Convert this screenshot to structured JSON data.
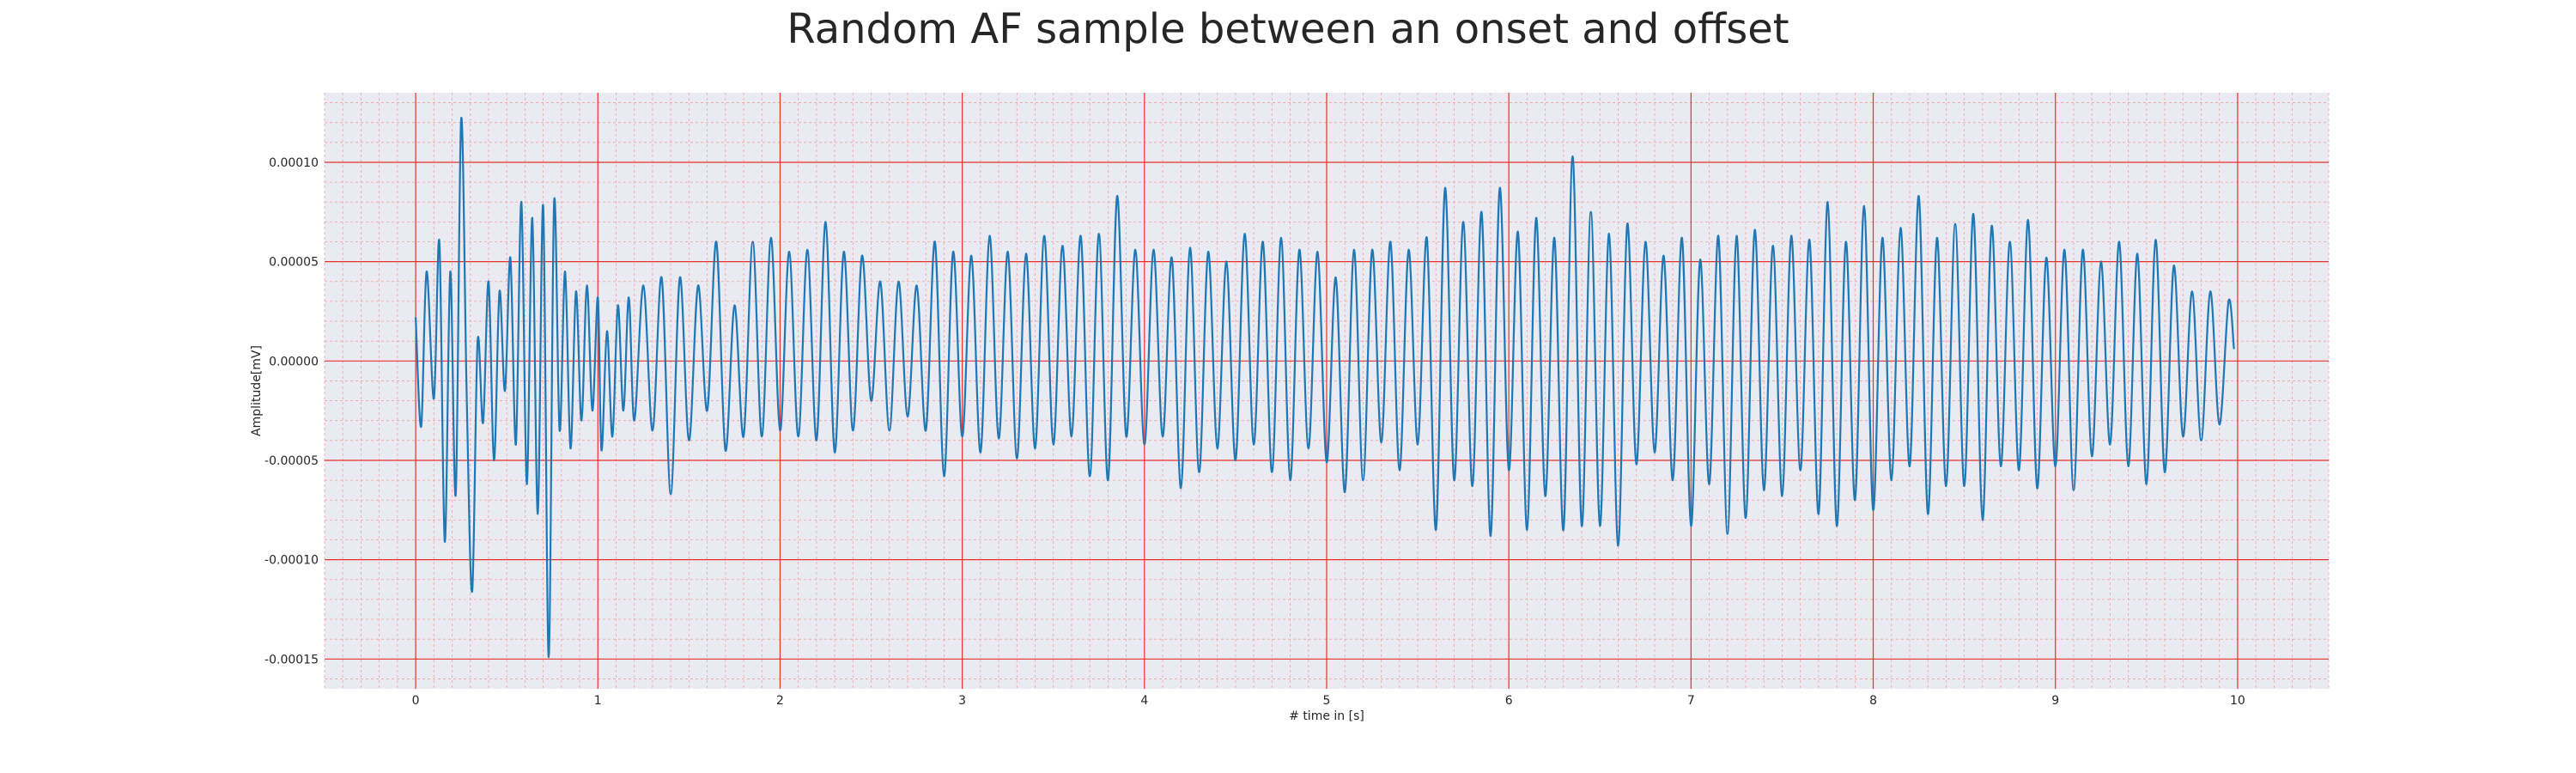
{
  "chart_data": {
    "type": "line",
    "title": "Random AF sample between an onset and offset",
    "xlabel": "# time in [s]",
    "ylabel": "Amplitude[mV]",
    "xlim": [
      -0.5,
      10.5
    ],
    "ylim": [
      -0.000165,
      0.000135
    ],
    "x_ticks": [
      "0",
      "1",
      "2",
      "3",
      "4",
      "5",
      "6",
      "7",
      "8",
      "9",
      "10"
    ],
    "y_ticks": [
      "-0.00015",
      "-0.00010",
      "-0.00005",
      "0.00000",
      "0.00005",
      "0.00010"
    ],
    "grid": true,
    "minor_grid": true,
    "series": [
      {
        "color": "#1f77b4",
        "x": [
          0.0,
          0.03,
          0.06,
          0.1,
          0.13,
          0.16,
          0.19,
          0.22,
          0.25,
          0.28,
          0.31,
          0.34,
          0.37,
          0.4,
          0.43,
          0.46,
          0.49,
          0.52,
          0.55,
          0.58,
          0.61,
          0.64,
          0.67,
          0.7,
          0.73,
          0.76,
          0.79,
          0.82,
          0.85,
          0.88,
          0.91,
          0.94,
          0.97,
          1.0,
          1.02,
          1.05,
          1.08,
          1.11,
          1.14,
          1.17,
          1.2,
          1.25,
          1.3,
          1.35,
          1.4,
          1.45,
          1.5,
          1.55,
          1.6,
          1.65,
          1.7,
          1.75,
          1.8,
          1.85,
          1.9,
          1.95,
          2.0,
          2.05,
          2.1,
          2.15,
          2.2,
          2.25,
          2.3,
          2.35,
          2.4,
          2.45,
          2.5,
          2.55,
          2.6,
          2.65,
          2.7,
          2.75,
          2.8,
          2.85,
          2.9,
          2.95,
          3.0,
          3.05,
          3.1,
          3.15,
          3.2,
          3.25,
          3.3,
          3.35,
          3.4,
          3.45,
          3.5,
          3.55,
          3.6,
          3.65,
          3.7,
          3.75,
          3.8,
          3.85,
          3.9,
          3.95,
          4.0,
          4.05,
          4.1,
          4.15,
          4.2,
          4.25,
          4.3,
          4.35,
          4.4,
          4.45,
          4.5,
          4.55,
          4.6,
          4.65,
          4.7,
          4.75,
          4.8,
          4.85,
          4.9,
          4.95,
          5.0,
          5.05,
          5.1,
          5.15,
          5.2,
          5.25,
          5.3,
          5.35,
          5.4,
          5.45,
          5.5,
          5.55,
          5.6,
          5.65,
          5.7,
          5.75,
          5.8,
          5.85,
          5.9,
          5.95,
          6.0,
          6.05,
          6.1,
          6.15,
          6.2,
          6.25,
          6.3,
          6.35,
          6.4,
          6.45,
          6.5,
          6.55,
          6.6,
          6.65,
          6.7,
          6.75,
          6.8,
          6.85,
          6.9,
          6.95,
          7.0,
          7.05,
          7.1,
          7.15,
          7.2,
          7.25,
          7.3,
          7.35,
          7.4,
          7.45,
          7.5,
          7.55,
          7.6,
          7.65,
          7.7,
          7.75,
          7.8,
          7.85,
          7.9,
          7.95,
          8.0,
          8.05,
          8.1,
          8.15,
          8.2,
          8.25,
          8.3,
          8.35,
          8.4,
          8.45,
          8.5,
          8.55,
          8.6,
          8.65,
          8.7,
          8.75,
          8.8,
          8.85,
          8.9,
          8.95,
          9.0,
          9.05,
          9.1,
          9.15,
          9.2,
          9.25,
          9.3,
          9.35,
          9.4,
          9.45,
          9.5,
          9.55,
          9.6,
          9.65,
          9.7,
          9.75,
          9.8,
          9.85,
          9.9,
          9.95,
          9.98
        ],
        "y": [
          2.2e-05,
          -3.3e-05,
          4.5e-05,
          -1.9e-05,
          6e-05,
          -9.1e-05,
          4.5e-05,
          -6.7e-05,
          0.000122,
          -1.7e-05,
          -0.000116,
          1e-05,
          -3.1e-05,
          4e-05,
          -5e-05,
          3.5e-05,
          -1.5e-05,
          5.2e-05,
          -4.2e-05,
          8e-05,
          -6.2e-05,
          7.2e-05,
          -7.7e-05,
          7.8e-05,
          -0.000149,
          8e-05,
          -3.5e-05,
          4.5e-05,
          -4.4e-05,
          3.5e-05,
          -3e-05,
          3.8e-05,
          -2.5e-05,
          3.2e-05,
          -4.5e-05,
          1.5e-05,
          -3.8e-05,
          2.8e-05,
          -2.5e-05,
          3.2e-05,
          -3e-05,
          3.8e-05,
          -3.5e-05,
          4.2e-05,
          -6.7e-05,
          4.2e-05,
          -4e-05,
          3.8e-05,
          -2.5e-05,
          6e-05,
          -4.5e-05,
          2.8e-05,
          -3.8e-05,
          6e-05,
          -3.8e-05,
          6.2e-05,
          -3.5e-05,
          5.5e-05,
          -3.8e-05,
          5.6e-05,
          -4e-05,
          7e-05,
          -4.6e-05,
          5.5e-05,
          -3.5e-05,
          5.3e-05,
          -2e-05,
          4e-05,
          -3.5e-05,
          4e-05,
          -2.8e-05,
          3.8e-05,
          -3.5e-05,
          6e-05,
          -5.8e-05,
          5.5e-05,
          -3.8e-05,
          5.3e-05,
          -4.6e-05,
          6.3e-05,
          -3.9e-05,
          5.5e-05,
          -4.9e-05,
          5.4e-05,
          -4.4e-05,
          6.3e-05,
          -4.2e-05,
          5.8e-05,
          -3.8e-05,
          6.3e-05,
          -5.8e-05,
          6.4e-05,
          -6e-05,
          8.3e-05,
          -3.8e-05,
          5.6e-05,
          -4.2e-05,
          5.6e-05,
          -3.8e-05,
          5.2e-05,
          -6.4e-05,
          5.7e-05,
          -5.6e-05,
          5.5e-05,
          -4.4e-05,
          5e-05,
          -5e-05,
          6.4e-05,
          -4.2e-05,
          6e-05,
          -5.6e-05,
          6.2e-05,
          -6e-05,
          5.6e-05,
          -4.4e-05,
          5.5e-05,
          -5.1e-05,
          4.2e-05,
          -6.6e-05,
          5.6e-05,
          -6e-05,
          5.6e-05,
          -4.1e-05,
          6e-05,
          -5.5e-05,
          5.6e-05,
          -4.2e-05,
          6.2e-05,
          -8.5e-05,
          8.7e-05,
          -6e-05,
          7e-05,
          -6.3e-05,
          7.5e-05,
          -8.8e-05,
          8.7e-05,
          -5.5e-05,
          6.5e-05,
          -8.5e-05,
          7.2e-05,
          -6.8e-05,
          6.2e-05,
          -8.5e-05,
          0.000103,
          -8.3e-05,
          7.5e-05,
          -8.3e-05,
          6.4e-05,
          -9.3e-05,
          6.9e-05,
          -5.2e-05,
          6e-05,
          -4.6e-05,
          5.3e-05,
          -6e-05,
          6.2e-05,
          -8.3e-05,
          5.1e-05,
          -6.2e-05,
          6.3e-05,
          -8.7e-05,
          6.3e-05,
          -7.9e-05,
          6.6e-05,
          -6.5e-05,
          5.8e-05,
          -6.8e-05,
          6.3e-05,
          -5.5e-05,
          6.1e-05,
          -7.7e-05,
          8e-05,
          -8.3e-05,
          6e-05,
          -7e-05,
          7.8e-05,
          -7.5e-05,
          6.2e-05,
          -6e-05,
          6.7e-05,
          -5.3e-05,
          8.3e-05,
          -7.7e-05,
          6.2e-05,
          -6.3e-05,
          6.9e-05,
          -6.3e-05,
          7.4e-05,
          -8e-05,
          6.8e-05,
          -5.3e-05,
          6e-05,
          -5.5e-05,
          7.1e-05,
          -6.4e-05,
          5.2e-05,
          -5.3e-05,
          5.6e-05,
          -6.5e-05,
          5.6e-05,
          -4.8e-05,
          5e-05,
          -4.2e-05,
          6e-05,
          -5.3e-05,
          5.4e-05,
          -6.2e-05,
          6.1e-05,
          -5.6e-05,
          4.8e-05,
          -3.8e-05,
          3.5e-05,
          -4e-05,
          3.5e-05,
          -3.2e-05,
          3e-05,
          6e-06
        ]
      }
    ]
  }
}
